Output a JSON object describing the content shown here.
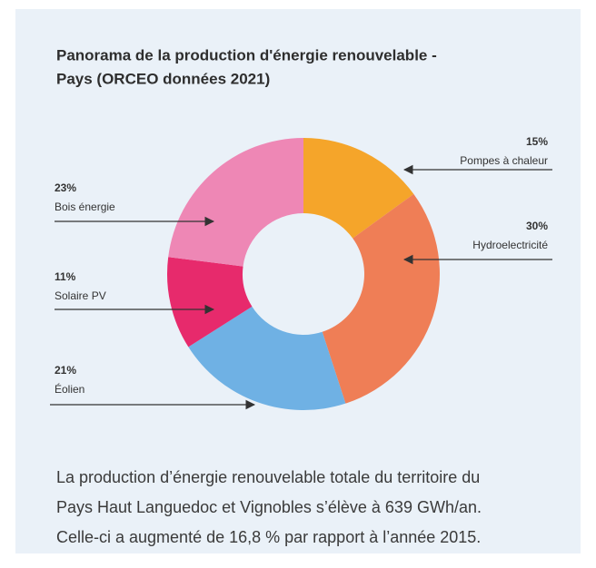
{
  "chart_data": {
    "type": "pie",
    "donut": true,
    "title": [
      "Panorama de la production d'énergie renouvelable -",
      "Pays (ORCEO données 2021)"
    ],
    "categories": [
      "Pompes à chaleur",
      "Hydroelectricité",
      "Éolien",
      "Solaire PV",
      "Bois énergie"
    ],
    "values": [
      15,
      30,
      21,
      11,
      23
    ],
    "value_labels": [
      "15%",
      "30%",
      "21%",
      "11%",
      "23%"
    ],
    "colors": [
      "#f5a52a",
      "#ef7e56",
      "#6fb1e4",
      "#e72a6c",
      "#ee87b5"
    ]
  },
  "text": {
    "lines": [
      "La production d’énergie renouvelable totale du territoire du",
      "Pays Haut Languedoc et Vignobles s’élève à 639 GWh/an.",
      "Celle-ci a augmenté de 16,8 % par rapport à l’année 2015."
    ]
  }
}
